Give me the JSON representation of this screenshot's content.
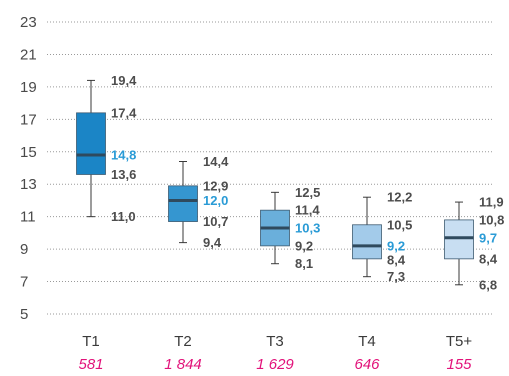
{
  "chart_data": {
    "type": "boxplot",
    "ylim": [
      5,
      23
    ],
    "yticks": [
      "5",
      "7",
      "9",
      "11",
      "13",
      "15",
      "17",
      "19",
      "21",
      "23"
    ],
    "grid": true,
    "colors": {
      "whisker": "#3a3a3a",
      "median_line": "#2f4a5e",
      "median_label": "#2a9bd6",
      "value_label": "#4d4d4d",
      "count_label": "#e2127a"
    },
    "categories": [
      {
        "label": "T1",
        "count": "581",
        "fill": "#1b85c6",
        "min": 11.0,
        "q1": 13.6,
        "median": 14.8,
        "q3": 17.4,
        "max": 19.4,
        "labels": {
          "min": "11,0",
          "q1": "13,6",
          "median": "14,8",
          "q3": "17,4",
          "max": "19,4"
        }
      },
      {
        "label": "T2",
        "count": "1 844",
        "fill": "#3596d0",
        "min": 9.4,
        "q1": 10.7,
        "median": 12.0,
        "q3": 12.9,
        "max": 14.4,
        "labels": {
          "min": "9,4",
          "q1": "10,7",
          "median": "12,0",
          "q3": "12,9",
          "max": "14,4"
        }
      },
      {
        "label": "T3",
        "count": "1 629",
        "fill": "#6aafdb",
        "min": 8.1,
        "q1": 9.2,
        "median": 10.3,
        "q3": 11.4,
        "max": 12.5,
        "labels": {
          "min": "8,1",
          "q1": "9,2",
          "median": "10,3",
          "q3": "11,4",
          "max": "12,5"
        }
      },
      {
        "label": "T4",
        "count": "646",
        "fill": "#a3cbea",
        "min": 7.3,
        "q1": 8.4,
        "median": 9.2,
        "q3": 10.5,
        "max": 12.2,
        "labels": {
          "min": "7,3",
          "q1": "8,4",
          "median": "9,2",
          "q3": "10,5",
          "max": "12,2"
        }
      },
      {
        "label": "T5+",
        "count": "155",
        "fill": "#c8def2",
        "min": 6.8,
        "q1": 8.4,
        "median": 9.7,
        "q3": 10.8,
        "max": 11.9,
        "labels": {
          "min": "6,8",
          "q1": "8,4",
          "median": "9,7",
          "q3": "10,8",
          "max": "11,9"
        }
      }
    ]
  }
}
